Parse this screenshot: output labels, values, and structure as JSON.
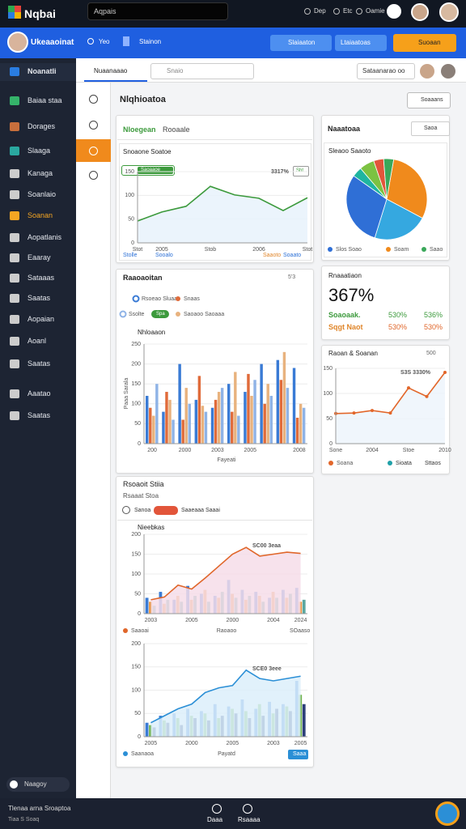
{
  "topbar": {
    "logo": "Nqbai",
    "search": "Aqpais",
    "links": [
      "Dep",
      "Etc",
      "Oamie"
    ]
  },
  "toolbar": {
    "user": "Ukeaaoinat",
    "items": [
      "Yeo",
      "Stainon"
    ],
    "buttons": [
      "Slaiaaton",
      "Ltaiaatoas",
      "Suoaan"
    ]
  },
  "sidebar": {
    "items": [
      "Noanatli",
      "Baiaa staa",
      "Dorages",
      "Slaaga",
      "Kanaga",
      "Soanlaio",
      "Soanan",
      "Aopatlanis",
      "Eaaray",
      "Sataaas",
      "Saatas",
      "Aopaian",
      "Aoanl",
      "Saatas",
      "Aaatao",
      "Saatas"
    ],
    "footer": "Naagoy"
  },
  "header": {
    "tab": "Nuaanaaao",
    "search": "Snaio",
    "account": "Sataanarao oo"
  },
  "page": {
    "title": "Nlqhioatoa",
    "action": "Soaaans"
  },
  "cards": {
    "a": {
      "tabs": [
        "Nloegean",
        "Rooaale"
      ],
      "badge": "Saoaaoe",
      "button": "Sht",
      "footer": [
        "Stolle",
        "Sooalo",
        "Saaoto",
        "Soaato"
      ]
    },
    "b": {
      "title": "Naaatoaa",
      "button": "Saoa"
    },
    "c": {
      "title": "Raaoaoitan",
      "meta": "5'3",
      "badge": "Spa"
    },
    "d": {
      "title": "Rnaaatiaon",
      "value": "367%",
      "rows": [
        [
          "Soaoaak.",
          "530%",
          "536%"
        ],
        [
          "Sqgt Naot",
          "530%",
          "530%"
        ]
      ]
    },
    "e": {
      "meta": "500",
      "legend": [
        "Sioata",
        "Sttaos"
      ]
    },
    "f": {
      "title": "Rsoaoit Stiia",
      "subtitle": "Rsaaat Stoa",
      "chip": "Sanoa",
      "filter": "Saaeaaa Saaai",
      "button": "Saaa"
    }
  },
  "footer": {
    "lines": [
      "Tlenaa arna Sroaptoa",
      "Tiaa S Soaq"
    ],
    "buttons": [
      "Daaa",
      "Rsaaaa"
    ]
  },
  "chart_data": [
    {
      "type": "line",
      "title": "Snoaone Soatoe",
      "annotation": "3317%",
      "categories": [
        "Stot",
        "2005",
        null,
        "Stob",
        null,
        "2006",
        null,
        "Stot"
      ],
      "series": [
        {
          "color": "#3c9a3c",
          "values": [
            46,
            65,
            77,
            119,
            101,
            94,
            68,
            95
          ]
        }
      ],
      "ylim": [
        0,
        150
      ],
      "yticks": [
        0,
        50,
        100,
        150
      ],
      "grid": true,
      "area": "#e8f2fb"
    },
    {
      "type": "pie",
      "title": "Sleaoo Saaoto",
      "categories": [
        "Soam",
        null,
        "Slos Soao",
        null,
        null,
        null,
        "Saao"
      ],
      "values": [
        30,
        22,
        30,
        4,
        6,
        4,
        4
      ],
      "colors": [
        "#f08a1c",
        "#35a8e0",
        "#2f6fd6",
        "#1fb5a0",
        "#7cc242",
        "#e2553a",
        "#3aa85a"
      ]
    },
    {
      "type": "bar",
      "title": "Nhloaaon",
      "x_label": "Fayeati",
      "y_label": "Paaa Sarala",
      "categories": [
        "200",
        null,
        "2000",
        null,
        "2003",
        null,
        "2005",
        null,
        null,
        "2008"
      ],
      "series": [
        {
          "name": "Rsoeao Sluaae",
          "color": "#3a7bd5",
          "values": [
            120,
            80,
            200,
            110,
            90,
            150,
            130,
            200,
            210,
            190
          ]
        },
        {
          "name": "Snaas",
          "color": "#e06b3a",
          "values": [
            90,
            130,
            60,
            170,
            110,
            80,
            175,
            100,
            160,
            65
          ]
        },
        {
          "name": "Saoaoo Saoaaa",
          "color": "#e8b27e",
          "values": [
            70,
            110,
            140,
            95,
            130,
            180,
            120,
            150,
            230,
            100
          ]
        },
        {
          "name": "Ssolte",
          "color": "#8fb3e6",
          "values": [
            150,
            60,
            100,
            80,
            140,
            70,
            160,
            120,
            140,
            90
          ]
        }
      ],
      "ylim": [
        0,
        250
      ],
      "yticks": [
        0,
        50,
        100,
        150,
        200,
        250
      ],
      "grid": true
    },
    {
      "type": "line",
      "title": "Raoan & Soanan",
      "annotation": "S3S 3330%",
      "categories": [
        "Sone",
        null,
        "2004",
        null,
        "Stoe",
        null,
        "2010"
      ],
      "series": [
        {
          "name": "Soana",
          "color": "#e2662a",
          "values": [
            60,
            61,
            66,
            61,
            111,
            94,
            142
          ]
        }
      ],
      "ylim": [
        0,
        150
      ],
      "yticks": [
        0,
        50,
        100,
        150
      ],
      "grid": true,
      "area": "#edf5fb",
      "markers": true
    },
    {
      "type": "combo",
      "title": "Nieebkas",
      "annotation": "SC00 3eaa",
      "x_label": "Raoaoo",
      "note": "SOaaso",
      "categories": [
        "2003",
        null,
        null,
        "2005",
        null,
        null,
        "2000",
        null,
        null,
        "2004",
        null,
        "2024"
      ],
      "series": [
        {
          "name": "Saaoai",
          "type": "line",
          "color": "#e0662a",
          "values": [
            35,
            42,
            72,
            62,
            90,
            120,
            150,
            167,
            145,
            150,
            155,
            152
          ]
        },
        {
          "type": "bar",
          "color": "#3a7bd5",
          "values": [
            40,
            55,
            35,
            70,
            50,
            45,
            85,
            60,
            55,
            40,
            60,
            65
          ]
        },
        {
          "type": "bar",
          "color": "#e8913a",
          "values": [
            30,
            25,
            45,
            35,
            60,
            40,
            50,
            35,
            45,
            55,
            40,
            30
          ]
        },
        {
          "type": "bar",
          "color": "#5aa7a0",
          "values": [
            20,
            35,
            30,
            45,
            30,
            55,
            40,
            45,
            30,
            40,
            50,
            35
          ]
        }
      ],
      "ylim": [
        0,
        200
      ],
      "yticks": [
        0,
        50,
        100,
        150,
        200
      ],
      "grid": true,
      "area": "#f6dde9"
    },
    {
      "type": "combo",
      "annotation": "SCE0 3eee",
      "x_label": "Payatd",
      "categories": [
        "2005",
        null,
        null,
        "2000",
        null,
        null,
        "2005",
        null,
        null,
        "2003",
        null,
        "2005"
      ],
      "series": [
        {
          "name": "Saanaoa",
          "type": "line",
          "color": "#2b8fd6",
          "values": [
            30,
            45,
            60,
            70,
            95,
            105,
            110,
            143,
            125,
            120,
            125,
            130
          ]
        },
        {
          "type": "bar",
          "color": "#3a7bd5",
          "values": [
            30,
            45,
            50,
            60,
            55,
            70,
            65,
            80,
            60,
            75,
            70,
            120
          ]
        },
        {
          "type": "bar",
          "color": "#6fb24a",
          "values": [
            25,
            35,
            40,
            45,
            50,
            40,
            60,
            55,
            70,
            50,
            65,
            90
          ]
        },
        {
          "type": "bar",
          "color": "#2c3e7a",
          "values": [
            20,
            30,
            25,
            40,
            35,
            45,
            50,
            40,
            45,
            60,
            55,
            70
          ]
        }
      ],
      "ylim": [
        0,
        200
      ],
      "yticks": [
        0,
        50,
        100,
        150,
        200
      ],
      "grid": true,
      "area": "#dceefa"
    }
  ]
}
